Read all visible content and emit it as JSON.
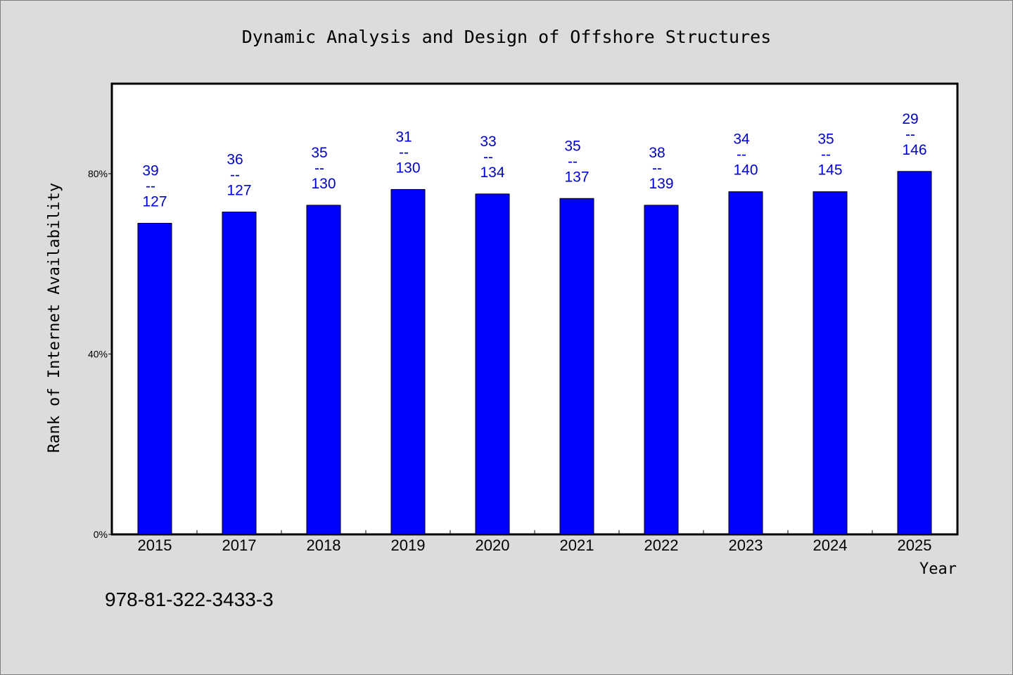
{
  "chart_data": {
    "type": "bar",
    "title": "Dynamic Analysis and Design of Offshore Structures",
    "xlabel": "Year",
    "ylabel": "Rank of Internet Availability",
    "categories": [
      "2015",
      "2017",
      "2018",
      "2019",
      "2020",
      "2021",
      "2022",
      "2023",
      "2024",
      "2025"
    ],
    "series": [
      {
        "values": [
          69,
          71.5,
          73,
          76.5,
          75.5,
          74.5,
          73,
          76,
          76,
          80.5
        ],
        "rank": [
          "39",
          "36",
          "35",
          "31",
          "33",
          "35",
          "38",
          "34",
          "35",
          "29"
        ],
        "total": [
          "127",
          "127",
          "130",
          "130",
          "134",
          "137",
          "139",
          "140",
          "145",
          "146"
        ],
        "label_separator": "--",
        "color": "#0000ff"
      }
    ],
    "yticks": [
      "0%",
      "40%",
      "80%"
    ],
    "ytick_values": [
      0,
      40,
      80
    ],
    "ylim": [
      0,
      100
    ],
    "grid": false,
    "legend": "none",
    "colors": {
      "bar": "#0000ff",
      "data_label": "#0000cc",
      "plot_background": "#ffffff",
      "figure_background": "#dcdcdc"
    }
  },
  "footer": {
    "isbn": "978-81-322-3433-3"
  }
}
